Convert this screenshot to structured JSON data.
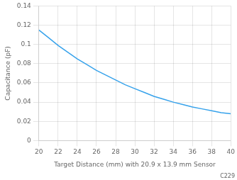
{
  "chart_data": {
    "type": "line",
    "x_label": "Target Distance (mm) with 20.9 x 13.9 mm Sensor",
    "y_label": "Capacitance (pF)",
    "x": [
      20,
      21,
      22,
      23,
      24,
      25,
      26,
      27,
      28,
      29,
      30,
      31,
      32,
      33,
      34,
      35,
      36,
      37,
      38,
      39,
      40
    ],
    "values": [
      0.115,
      0.107,
      0.099,
      0.092,
      0.085,
      0.079,
      0.073,
      0.068,
      0.063,
      0.058,
      0.054,
      0.05,
      0.046,
      0.043,
      0.04,
      0.0375,
      0.035,
      0.033,
      0.031,
      0.029,
      0.028
    ],
    "xlim": [
      20,
      40
    ],
    "xticks": [
      20,
      22,
      24,
      26,
      28,
      30,
      32,
      34,
      36,
      38,
      40
    ],
    "ylim": [
      0,
      0.14
    ],
    "yticks": [
      0,
      0.02,
      0.04,
      0.06,
      0.08,
      0.1,
      0.12,
      0.14
    ],
    "grid": true,
    "annotations": [
      "C229"
    ]
  }
}
